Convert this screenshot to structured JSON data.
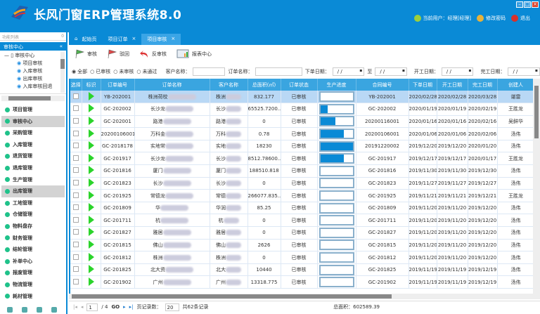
{
  "app": {
    "title": "长风门窗ERP管理系统8.0",
    "user": "当前用户：经理[经理]",
    "change_password": "修改密码",
    "logout": "退出",
    "accent": "#0a8ad6"
  },
  "sidebar": {
    "list_label": "功能列表",
    "list_pin": "0",
    "section": "审核中心",
    "tree": {
      "root": "审核中心",
      "leaves": [
        "项目审核",
        "入库审核",
        "出库审核",
        "入库审核回退"
      ]
    },
    "menu": [
      {
        "label": "项目管理"
      },
      {
        "label": "审核中心",
        "active": true
      },
      {
        "label": "采购管理"
      },
      {
        "label": "入库管理"
      },
      {
        "label": "退货管理"
      },
      {
        "label": "退库管理"
      },
      {
        "label": "生产管理"
      },
      {
        "label": "出库管理",
        "active": true
      },
      {
        "label": "工地管理"
      },
      {
        "label": "仓储管理"
      },
      {
        "label": "物料盘存"
      },
      {
        "label": "财务管理"
      },
      {
        "label": "结轮管理"
      },
      {
        "label": "补单中心"
      },
      {
        "label": "报废管理"
      },
      {
        "label": "物流管理"
      },
      {
        "label": "耗材管理"
      }
    ]
  },
  "tabs": [
    {
      "label": "起始页"
    },
    {
      "label": "项目订单",
      "close": "×"
    },
    {
      "label": "项目审核",
      "close": "×",
      "active": true
    }
  ],
  "toolbar": {
    "approve": "审核",
    "reject": "驳回",
    "unapprove": "反审核",
    "report": "报表中心"
  },
  "filter": {
    "radios": [
      "全部",
      "已审核",
      "未审核",
      "未通过"
    ],
    "selected": "全部",
    "customer_label": "客户名称：",
    "order_label": "订单名称：",
    "order_date_label": "下单日期：",
    "to_label": "至",
    "start_date_label": "开工日期：",
    "finish_date_label": "完工日期：",
    "date_placeholder": "/  /"
  },
  "grid": {
    "columns": [
      "选择",
      "标识",
      "订单编号",
      "订单名称",
      "客户名称",
      "总面积(㎡)",
      "订单状态",
      "生产进度",
      "合同编号",
      "下单日期",
      "开工日期",
      "完工日期",
      "创建人"
    ],
    "rows": [
      [
        "YB-202001",
        "株洲荷校",
        "株洲",
        "832.177",
        "已审核",
        0,
        "YB-202001",
        "2020/02/28",
        "2020/02/28",
        "2020/03/28",
        "谌雷"
      ],
      [
        "GC-202002",
        "长沙龙",
        "长沙",
        "65525.7200...",
        "已审核",
        0.22,
        "GC-202002",
        "2020/01/19",
        "2020/01/19",
        "2020/02/19",
        "王胜龙"
      ],
      [
        "GC-202001",
        "路港",
        "路港",
        "0",
        "已审核",
        0.47,
        "20200116001",
        "2020/01/16",
        "2020/01/16",
        "2020/02/16",
        "吴鲜华"
      ],
      [
        "20200106001",
        "万科金",
        "万科",
        "0.78",
        "已审核",
        0.72,
        "20200106001",
        "2020/01/06",
        "2020/01/06",
        "2020/02/06",
        "汤伟"
      ],
      [
        "GC-2018178",
        "实地常",
        "实地",
        "18230",
        "已审核",
        1,
        "20191220002",
        "2019/12/20",
        "2019/12/20",
        "2020/01/20",
        "汤伟"
      ],
      [
        "GC-201917",
        "长沙龙",
        "长沙",
        "8512.78600...",
        "已审核",
        0.72,
        "GC-201917",
        "2019/12/17",
        "2019/12/17",
        "2020/01/17",
        "王胜龙"
      ],
      [
        "GC-201816",
        "厦门",
        "厦门",
        "188510.818",
        "已审核",
        0,
        "GC-201816",
        "2019/11/30",
        "2019/11/30",
        "2019/12/30",
        "汤伟"
      ],
      [
        "GC-201823",
        "长沙",
        "长沙",
        "0",
        "已审核",
        0,
        "GC-201823",
        "2019/11/27",
        "2019/11/27",
        "2019/12/27",
        "汤伟"
      ],
      [
        "GC-201925",
        "常德龙",
        "常德",
        "266077.835...",
        "已审核",
        0,
        "GC-201925",
        "2019/11/21",
        "2019/11/21",
        "2019/12/21",
        "王胜龙"
      ],
      [
        "GC-201809",
        "华",
        "华润",
        "85.25",
        "已审核",
        0,
        "GC-201809",
        "2019/11/20",
        "2019/11/20",
        "2019/12/20",
        "汤伟"
      ],
      [
        "GC-201711",
        "杭",
        "杭",
        "0",
        "已审核",
        0,
        "GC-201711",
        "2019/11/20",
        "2019/11/20",
        "2019/12/20",
        "汤伟"
      ],
      [
        "GC-201827",
        "雅居",
        "雅居",
        "0",
        "已审核",
        0,
        "GC-201827",
        "2019/11/20",
        "2019/11/20",
        "2019/12/20",
        "汤伟"
      ],
      [
        "GC-201815",
        "佛山",
        "佛山",
        "2626",
        "已审核",
        0,
        "GC-201815",
        "2019/11/20",
        "2019/11/20",
        "2019/12/20",
        "汤伟"
      ],
      [
        "GC-201812",
        "株洲",
        "株洲",
        "0",
        "已审核",
        0,
        "GC-201812",
        "2019/11/20",
        "2019/11/20",
        "2019/12/20",
        "汤伟"
      ],
      [
        "GC-201825",
        "北大资",
        "北大",
        "10440",
        "已审核",
        0,
        "GC-201825",
        "2019/11/19",
        "2019/11/19",
        "2019/12/19",
        "汤伟"
      ],
      [
        "GC-201902",
        "广州",
        "广州",
        "13318.775",
        "已审核",
        0,
        "GC-201902",
        "2019/11/19",
        "2019/11/19",
        "2019/12/19",
        "汤伟"
      ]
    ]
  },
  "pager": {
    "page": "1",
    "total_pages": "/ 4",
    "go": "GO",
    "page_size_label": "页记录数：",
    "page_size": "20",
    "total": "共62条记录",
    "total_area": "总面积：602589.39"
  }
}
